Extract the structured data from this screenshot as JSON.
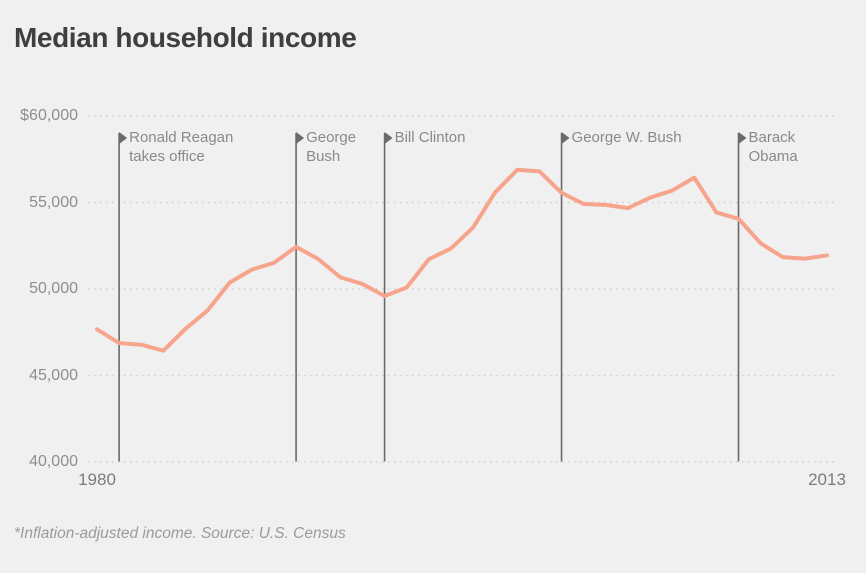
{
  "page": {
    "title": "Median household income",
    "footnote": "*Inflation-adjusted income. Source: U.S. Census"
  },
  "colors": {
    "background": "#f0f0f0",
    "title_text": "#3f3f3f",
    "line": "#f7a48d",
    "gridline": "#cfcfcf",
    "event_line": "#6a6a6a",
    "axis_text": "#8e8e8e",
    "event_text": "#8a8a8a"
  },
  "chart_data": {
    "type": "line",
    "title": "Median household income",
    "xlabel": "",
    "ylabel": "",
    "xlim": [
      1980,
      2013
    ],
    "ylim": [
      40000,
      60000
    ],
    "grid": "horizontal dotted lines",
    "legend": "none",
    "x": [
      1980,
      1981,
      1982,
      1983,
      1984,
      1985,
      1986,
      1987,
      1988,
      1989,
      1990,
      1991,
      1992,
      1993,
      1994,
      1995,
      1996,
      1997,
      1998,
      1999,
      2000,
      2001,
      2002,
      2003,
      2004,
      2005,
      2006,
      2007,
      2008,
      2009,
      2010,
      2011,
      2012,
      2013
    ],
    "series": [
      {
        "name": "Median household income (inflation-adjusted)",
        "values": [
          47668,
          46875,
          46779,
          46437,
          47700,
          48760,
          50378,
          51122,
          51514,
          52432,
          51735,
          50679,
          50287,
          49594,
          50089,
          51719,
          52342,
          53551,
          55589,
          56895,
          56800,
          55562,
          54913,
          54865,
          54674,
          55278,
          55689,
          56436,
          54423,
          54059,
          52646,
          51842,
          51758,
          51939
        ]
      }
    ],
    "yticks": [
      {
        "value": 60000,
        "label": "$60,000"
      },
      {
        "value": 55000,
        "label": "55,000"
      },
      {
        "value": 50000,
        "label": "50,000"
      },
      {
        "value": 45000,
        "label": "45,000"
      },
      {
        "value": 40000,
        "label": "40,000"
      }
    ],
    "xticks": [
      {
        "value": 1980,
        "label": "1980"
      },
      {
        "value": 2013,
        "label": "2013"
      }
    ],
    "annotations": [
      {
        "year": 1981,
        "lines": [
          "Ronald Reagan",
          "takes office"
        ]
      },
      {
        "year": 1989,
        "lines": [
          "George",
          "Bush"
        ]
      },
      {
        "year": 1993,
        "lines": [
          "Bill Clinton"
        ]
      },
      {
        "year": 2001,
        "lines": [
          "George W. Bush"
        ]
      },
      {
        "year": 2009,
        "lines": [
          "Barack",
          "Obama"
        ]
      }
    ]
  }
}
